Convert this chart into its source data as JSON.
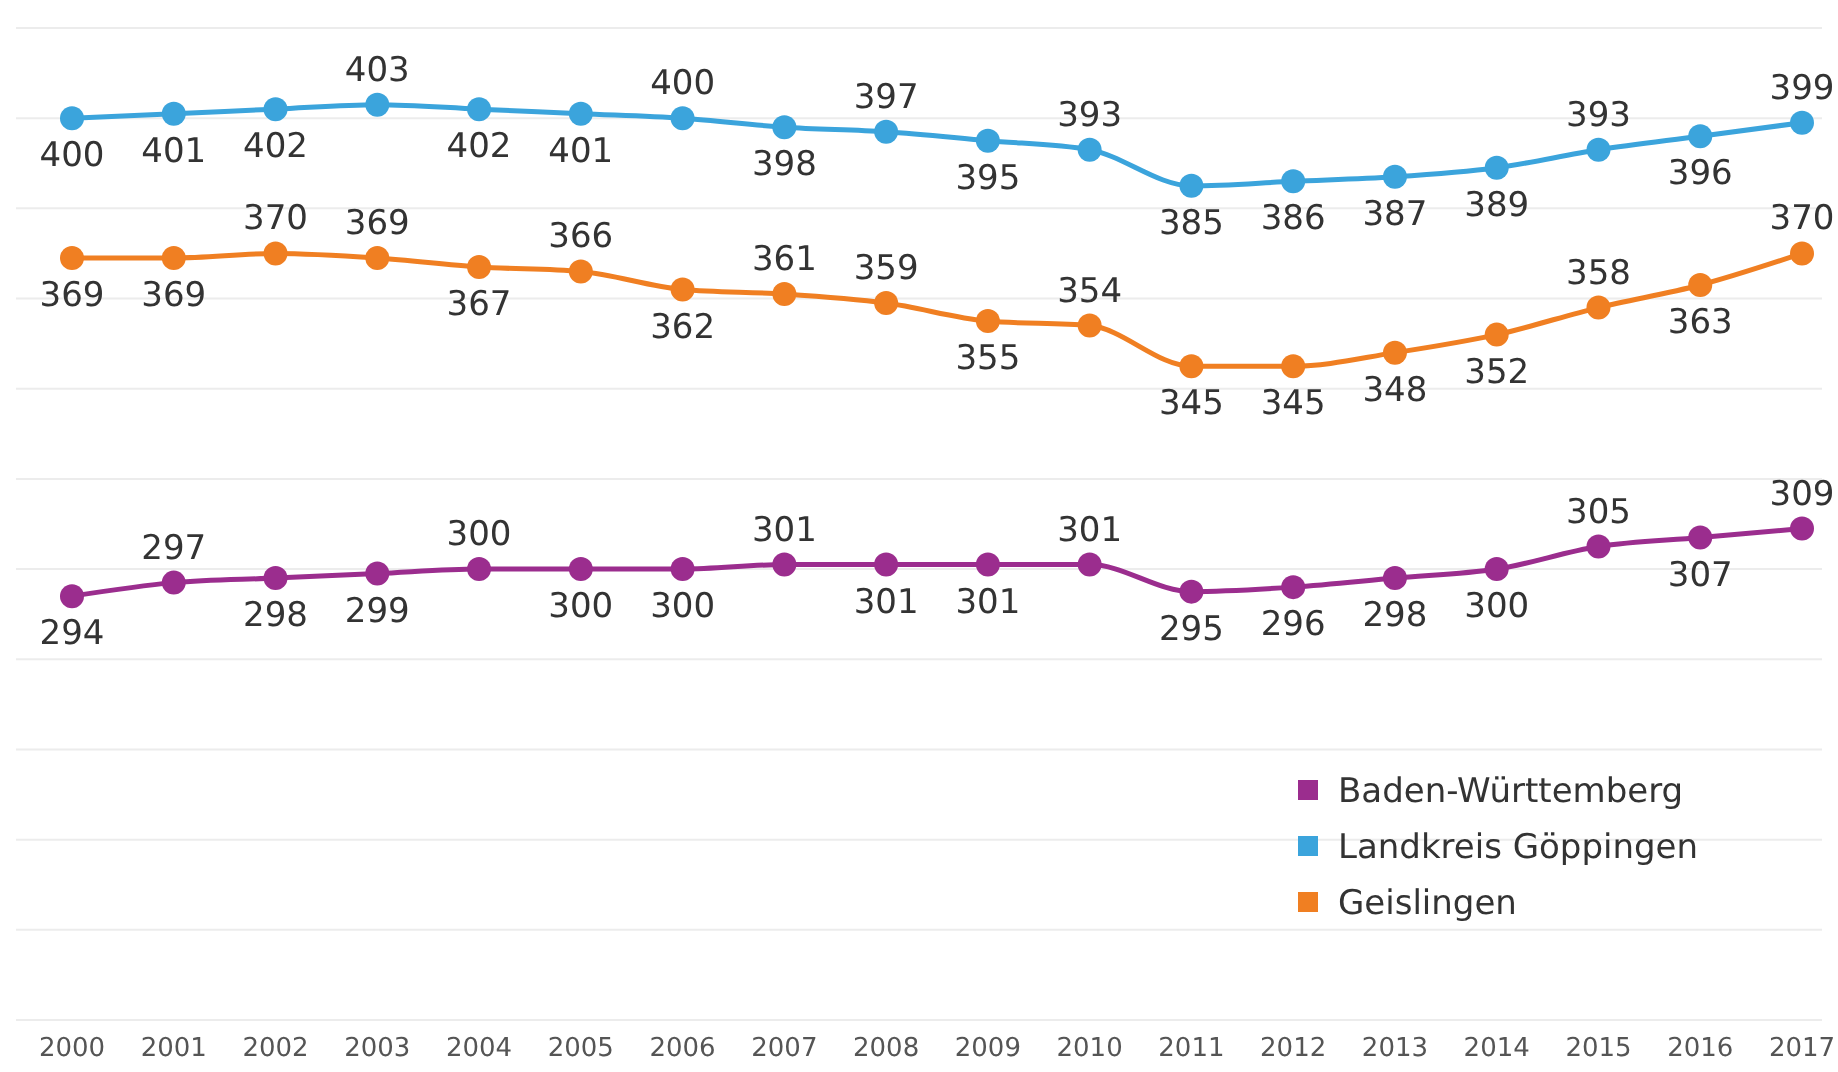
{
  "chart_data": {
    "type": "line",
    "categories": [
      "2000",
      "2001",
      "2002",
      "2003",
      "2004",
      "2005",
      "2006",
      "2007",
      "2008",
      "2009",
      "2010",
      "2011",
      "2012",
      "2013",
      "2014",
      "2015",
      "2016",
      "2017"
    ],
    "series": [
      {
        "name": "Baden-Württemberg",
        "color": "#9b2d8e",
        "values": [
          294,
          297,
          298,
          299,
          300,
          300,
          300,
          301,
          301,
          301,
          301,
          295,
          296,
          298,
          300,
          305,
          307,
          309
        ]
      },
      {
        "name": "Landkreis Göppingen",
        "color": "#3ba4dc",
        "values": [
          400,
          401,
          402,
          403,
          402,
          401,
          400,
          398,
          397,
          395,
          393,
          385,
          386,
          387,
          389,
          393,
          396,
          399
        ]
      },
      {
        "name": "Geislingen",
        "color": "#f07f22",
        "values": [
          369,
          369,
          370,
          369,
          367,
          366,
          362,
          361,
          359,
          355,
          354,
          345,
          345,
          348,
          352,
          358,
          363,
          370
        ]
      }
    ],
    "ylim": [
      200,
      420
    ],
    "yticks": [
      {
        "value": 200,
        "label": null
      },
      {
        "value": 220,
        "label": null
      },
      {
        "value": 240,
        "label": null
      },
      {
        "value": 260,
        "label": null
      },
      {
        "value": 280,
        "label": null
      },
      {
        "value": 300,
        "label": null
      },
      {
        "value": 320,
        "label": null
      },
      {
        "value": 340,
        "label": null
      },
      {
        "value": 360,
        "label": null
      },
      {
        "value": 380,
        "label": null
      },
      {
        "value": 400,
        "label": null
      },
      {
        "value": 420,
        "label": null
      }
    ],
    "tick_labels": "x",
    "grid": "y",
    "legend": "bottom right",
    "marker": "circle",
    "line_style": "solid",
    "data_labels": true
  }
}
